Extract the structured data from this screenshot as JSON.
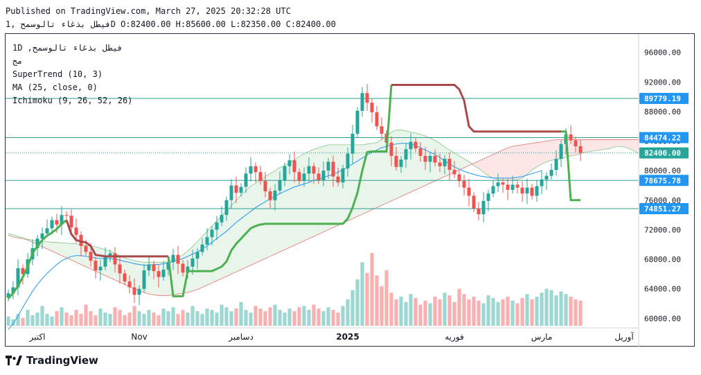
{
  "header": {
    "published_line": "Published on TradingView.com, March 27, 2025 20:32:28 UTC",
    "ohlc_line": "فيطل بذغاء تالوسمح ,1D O:82400.00 H:85600.00 L:82350.00 C:82400.00"
  },
  "legend": {
    "symbol": "1D ,فيطل بذغاء تالوسمح",
    "sub": "مج",
    "supertrend": "SuperTrend (10, 3)",
    "ma": "MA (25, close, 0)",
    "ichimoku": "Ichimoku (9, 26, 52, 26)"
  },
  "brand": {
    "name": "TradingView",
    "logo_icon": "tradingview-logo-icon"
  },
  "colors": {
    "up": "#26a69a",
    "down": "#ef5350",
    "supertrend_up": "#4caf50",
    "supertrend_down": "#a84a4a",
    "ma": "#2196f3",
    "line": "#2a9d8f",
    "label_bg": "#2196f3",
    "last_bg": "#26a69a"
  },
  "chart_data": {
    "type": "candlestick",
    "interval": "1D",
    "ylim": [
      59000,
      98500
    ],
    "y_ticks": [
      "96000.00",
      "92000.00",
      "88000.00",
      "84000.00",
      "80000.00",
      "76000.00",
      "72000.00",
      "68000.00",
      "64000.00",
      "60000.00"
    ],
    "y_tick_values": [
      96000,
      92000,
      88000,
      84000,
      80000,
      76000,
      72000,
      68000,
      64000,
      60000
    ],
    "x_labels": [
      "اكتبر",
      "Nov",
      "دسامبر",
      "2025",
      "فوريه",
      "مارس",
      "آوريل"
    ],
    "x_label_idx": [
      6,
      27,
      48,
      70,
      92,
      110,
      127
    ],
    "price_lines": [
      {
        "value": 89779.19,
        "label": "89779.19"
      },
      {
        "value": 84474.22,
        "label": "84474.22"
      },
      {
        "value": 78675.78,
        "label": "78675.78"
      },
      {
        "value": 74851.27,
        "label": "74851.27"
      }
    ],
    "last_price": {
      "value": 82400,
      "label": "82400.00"
    },
    "closes": [
      63400,
      64200,
      66800,
      66000,
      68000,
      69500,
      70800,
      71500,
      72200,
      73300,
      72700,
      74000,
      73900,
      72300,
      71300,
      69800,
      69000,
      67800,
      66500,
      67000,
      68400,
      68800,
      67300,
      66100,
      65000,
      64200,
      63200,
      64000,
      66500,
      67300,
      66400,
      65600,
      66600,
      67600,
      68600,
      67400,
      66200,
      67000,
      68100,
      69000,
      70000,
      71000,
      72000,
      73000,
      74000,
      76000,
      78000,
      77000,
      77800,
      79600,
      80600,
      79800,
      78600,
      77200,
      76000,
      77300,
      78700,
      80600,
      81400,
      79800,
      78600,
      79600,
      80600,
      79600,
      78700,
      80000,
      81200,
      79200,
      78400,
      80300,
      82300,
      85000,
      88100,
      90500,
      89200,
      87900,
      86000,
      85000,
      83800,
      82000,
      80500,
      81500,
      82900,
      83900,
      83000,
      82000,
      81200,
      82000,
      81100,
      80600,
      81600,
      80100,
      79500,
      78600,
      77700,
      76600,
      74900,
      74100,
      75900,
      76900,
      77900,
      78400,
      78100,
      77400,
      78100,
      77700,
      76900,
      77700,
      76600,
      77900,
      78800,
      79300,
      80100,
      81600,
      83600,
      84900,
      84100,
      83300,
      82400
    ],
    "supertrend": [
      62700,
      63400,
      64400,
      65600,
      67000,
      68800,
      69800,
      70600,
      71200,
      71600,
      72100,
      72800,
      73300,
      71400,
      70600,
      70400,
      70300,
      69800,
      68600,
      68500,
      68400,
      68400,
      68400,
      68400,
      68400,
      68400,
      68400,
      68400,
      68400,
      68400,
      68400,
      68400,
      68400,
      68400,
      63000,
      63000,
      63000,
      66400,
      66400,
      66400,
      66400,
      66400,
      66400,
      66700,
      67000,
      67700,
      69200,
      70100,
      70800,
      71500,
      72200,
      72500,
      72700,
      72800,
      72800,
      72800,
      72800,
      72800,
      72800,
      72800,
      72800,
      72800,
      72800,
      72800,
      72800,
      72800,
      72800,
      72800,
      72800,
      72800,
      73500,
      75000,
      77000,
      80000,
      82500,
      82600,
      82600,
      82600,
      82600,
      91600,
      91600,
      91600,
      91600,
      91600,
      91600,
      91600,
      91600,
      91600,
      91600,
      91600,
      91600,
      91600,
      91600,
      91000,
      89500,
      86000,
      85300,
      85300,
      85300,
      85300,
      85300,
      85300,
      85300,
      85300,
      85300,
      85300,
      85300,
      85300,
      85300,
      85300,
      85300,
      85300,
      85300,
      85300,
      85300,
      85300,
      76000,
      76000,
      76000,
      76000
    ],
    "supertrend_switch": [
      [
        0,
        12,
        "up"
      ],
      [
        12,
        33,
        "down"
      ],
      [
        33,
        79,
        "up"
      ],
      [
        79,
        114,
        "down"
      ],
      [
        114,
        118,
        "up"
      ]
    ],
    "ma": [
      58500,
      59300,
      60300,
      61500,
      62600,
      63700,
      64600,
      65400,
      66100,
      66700,
      67300,
      67800,
      68100,
      68400,
      68500,
      68500,
      68400,
      68300,
      68200,
      68100,
      68100,
      68100,
      68000,
      67900,
      67700,
      67600,
      67400,
      67300,
      67200,
      67200,
      67300,
      67300,
      67400,
      67500,
      67700,
      67900,
      68100,
      68400,
      68700,
      69000,
      69400,
      69800,
      70300,
      70800,
      71300,
      71800,
      72400,
      73000,
      73500,
      74000,
      74500,
      75000,
      75400,
      75800,
      76200,
      76500,
      76900,
      77200,
      77500,
      77800,
      78000,
      78200,
      78400,
      78700,
      78800,
      79100,
      79300,
      79500,
      79800,
      80100,
      80500,
      80900,
      81300,
      81700,
      82100,
      82500,
      82800,
      83100,
      83300,
      83500,
      83600,
      83700,
      83700,
      83600,
      83400,
      83100,
      82800,
      82500,
      82200,
      81800,
      81300,
      80900,
      80500,
      80200,
      79900,
      79700,
      79500,
      79300,
      79200,
      79100,
      79000,
      79000,
      79000,
      79000,
      79000,
      79100,
      79200,
      79400,
      79600,
      79800,
      80000
    ],
    "cloud_a": [
      71500,
      71300,
      71100,
      70900,
      70700,
      70600,
      70500,
      70400,
      70400,
      70300,
      70300,
      70200,
      70200,
      70100,
      70100,
      70000,
      69900,
      69800,
      69700,
      69500,
      69300,
      69100,
      68800,
      68500,
      68200,
      68000,
      67800,
      67700,
      67600,
      67600,
      67600,
      67600,
      67600,
      67700,
      67900,
      68200,
      68600,
      69100,
      69700,
      70400,
      71100,
      71800,
      72500,
      73200,
      73900,
      74600,
      75300,
      76000,
      76700,
      77300,
      77900,
      78300,
      78700,
      79200,
      79600,
      80000,
      80400,
      80700,
      81100,
      81500,
      81900,
      82300,
      82600,
      82900,
      83100,
      83300,
      83500,
      83500,
      83500,
      83500,
      83500,
      83500,
      83500,
      83500,
      83600,
      83700,
      83800,
      84200,
      84700,
      85200,
      85500,
      85500,
      85400,
      85200,
      85100,
      84900,
      84700,
      84400,
      84100,
      83700,
      83200,
      82800,
      82400,
      82000,
      81600,
      81200,
      80700,
      80300,
      79800,
      79300,
      79000,
      78800,
      78700,
      78700,
      78700,
      78800,
      79000,
      79500,
      80100,
      80500,
      80900,
      81200,
      81400,
      81500,
      81600,
      81800,
      82000,
      82100,
      82300,
      82500,
      82600,
      82700,
      82800,
      82900,
      83000,
      83200,
      83300,
      83200,
      83000,
      82700,
      82300,
      81700,
      81200,
      80800
    ],
    "cloud_b": [
      71300,
      71000,
      70900,
      70800,
      70600,
      70300,
      70000,
      69700,
      69400,
      69100,
      68800,
      68500,
      68200,
      67900,
      67600,
      67300,
      67000,
      66700,
      66400,
      66100,
      65800,
      65500,
      65200,
      64900,
      64600,
      64300,
      64000,
      63700,
      63500,
      63300,
      63200,
      63100,
      63100,
      63100,
      63200,
      63300,
      63400,
      63500,
      63700,
      63900,
      64200,
      64500,
      64800,
      65100,
      65400,
      65700,
      66000,
      66300,
      66600,
      66900,
      67200,
      67500,
      67800,
      68100,
      68400,
      68700,
      69000,
      69300,
      69600,
      69900,
      70200,
      70500,
      70800,
      71100,
      71400,
      71700,
      72000,
      72300,
      72600,
      72900,
      73200,
      73500,
      73800,
      74100,
      74400,
      74700,
      75000,
      75300,
      75600,
      75900,
      76200,
      76500,
      76800,
      77100,
      77400,
      77700,
      78000,
      78300,
      78600,
      78900,
      79200,
      79500,
      79800,
      80100,
      80400,
      80700,
      81000,
      81300,
      81600,
      81900,
      82200,
      82500,
      82800,
      83100,
      83300,
      83400,
      83500,
      83600,
      83700,
      83800,
      83900,
      84000,
      84100,
      84200,
      84200,
      84200,
      84200,
      84200,
      84200,
      84200,
      84200,
      84200,
      84200,
      84200,
      84200,
      84200,
      84200,
      84200,
      84200,
      84200,
      84200,
      84200,
      84200,
      84200
    ],
    "volumes": [
      7,
      5,
      9,
      6,
      12,
      8,
      10,
      15,
      9,
      7,
      11,
      14,
      10,
      8,
      12,
      9,
      16,
      11,
      8,
      13,
      10,
      9,
      14,
      12,
      8,
      10,
      15,
      11,
      9,
      12,
      10,
      8,
      13,
      11,
      14,
      9,
      12,
      10,
      15,
      11,
      9,
      13,
      12,
      10,
      16,
      14,
      11,
      13,
      18,
      12,
      10,
      15,
      13,
      11,
      14,
      16,
      12,
      10,
      13,
      11,
      14,
      15,
      12,
      16,
      13,
      11,
      14,
      12,
      10,
      15,
      20,
      27,
      35,
      48,
      40,
      55,
      38,
      30,
      42,
      25,
      20,
      22,
      18,
      24,
      21,
      16,
      19,
      17,
      22,
      20,
      25,
      23,
      18,
      28,
      24,
      20,
      22,
      19,
      17,
      23,
      21,
      18,
      20,
      22,
      19,
      17,
      21,
      24,
      20,
      22,
      25,
      28,
      27,
      23,
      26,
      24,
      22,
      20,
      19
    ]
  }
}
